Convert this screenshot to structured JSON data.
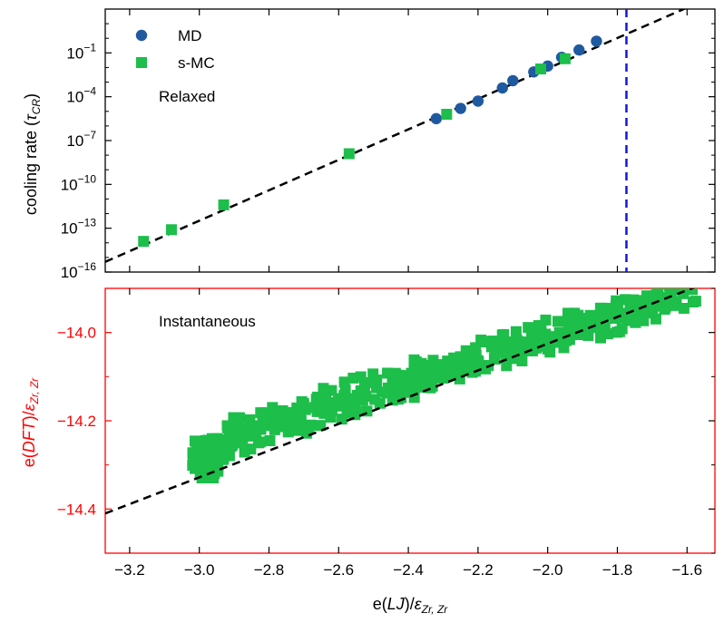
{
  "chart_data": [
    {
      "type": "scatter",
      "panel": "top",
      "title": "",
      "ylabel_main": "cooling rate (",
      "ylabel_sym": "τ",
      "ylabel_sub": "CR",
      "ylabel_close": ")",
      "yscale": "log",
      "ylim_exp": [
        -16,
        2
      ],
      "y_ticks": [
        {
          "base": "10",
          "exp": "−1",
          "pow": -1
        },
        {
          "base": "10",
          "exp": "−4",
          "pow": -4
        },
        {
          "base": "10",
          "exp": "−7",
          "pow": -7
        },
        {
          "base": "10",
          "exp": "−10",
          "pow": -10
        },
        {
          "base": "10",
          "exp": "−13",
          "pow": -13
        },
        {
          "base": "10",
          "exp": "−16",
          "pow": -16
        }
      ],
      "annotation": "Relaxed",
      "legend": [
        {
          "label": "MD",
          "marker": "circle",
          "color": "#1f5aa0"
        },
        {
          "label": "s-MC",
          "marker": "square",
          "color": "#1dbe4a"
        }
      ],
      "series": [
        {
          "name": "MD",
          "color": "#1f5aa0",
          "points": [
            [
              -2.32,
              -5.5
            ],
            [
              -2.25,
              -4.8
            ],
            [
              -2.2,
              -4.3
            ],
            [
              -2.13,
              -3.4
            ],
            [
              -2.1,
              -2.9
            ],
            [
              -2.04,
              -2.3
            ],
            [
              -2.0,
              -1.9
            ],
            [
              -1.96,
              -1.3
            ],
            [
              -1.91,
              -0.8
            ],
            [
              -1.86,
              -0.2
            ]
          ]
        },
        {
          "name": "s-MC",
          "color": "#1dbe4a",
          "points": [
            [
              -3.16,
              -13.9
            ],
            [
              -3.08,
              -13.1
            ],
            [
              -2.93,
              -11.4
            ],
            [
              -2.57,
              -7.9
            ],
            [
              -2.29,
              -5.2
            ],
            [
              -2.02,
              -2.1
            ],
            [
              -1.95,
              -1.4
            ]
          ]
        }
      ],
      "fit_line": {
        "color": "#000000",
        "x": [
          -3.27,
          -1.6
        ],
        "y": [
          -15.3,
          2.1
        ]
      },
      "vline": {
        "x": -1.774,
        "color": "#1616d8"
      }
    },
    {
      "type": "scatter",
      "panel": "bottom",
      "ylabel_main": "e(",
      "ylabel_italic": "DFT",
      "ylabel_close": ")/",
      "ylabel_sym": "ε",
      "ylabel_sub": "Zr, Zr",
      "ylabel_color": "#ff0000",
      "ylim": [
        -14.5,
        -13.9
      ],
      "y_ticks": [
        {
          "label": "−14.0",
          "value": -14.0
        },
        {
          "label": "−14.2",
          "value": -14.2
        },
        {
          "label": "−14.4",
          "value": -14.4
        }
      ],
      "annotation": "Instantaneous",
      "scatter_color": "#1dbe4a",
      "series": [
        {
          "name": "s-MC instantaneous",
          "cluster": {
            "x": [
              -3.02,
              -2.93
            ],
            "y": [
              -14.33,
              -14.24
            ]
          },
          "band": {
            "x": [
              -2.93,
              -1.56
            ],
            "slope": 0.25,
            "intercept": -13.51,
            "spread": 0.03
          }
        }
      ],
      "fit_line": {
        "color": "#000000",
        "x": [
          -3.27,
          -1.52
        ],
        "y": [
          -14.41,
          -13.88
        ]
      }
    }
  ],
  "x_axis": {
    "xlim": [
      -3.27,
      -1.52
    ],
    "xlabel_main": "e(",
    "xlabel_italic": "LJ",
    "xlabel_close": ")/",
    "xlabel_sym": "ε",
    "xlabel_sub": "Zr, Zr",
    "ticks": [
      {
        "label": "−3.2",
        "value": -3.2
      },
      {
        "label": "−3.0",
        "value": -3.0
      },
      {
        "label": "−2.8",
        "value": -2.8
      },
      {
        "label": "−2.6",
        "value": -2.6
      },
      {
        "label": "−2.4",
        "value": -2.4
      },
      {
        "label": "−2.2",
        "value": -2.2
      },
      {
        "label": "−2.0",
        "value": -2.0
      },
      {
        "label": "−1.8",
        "value": -1.8
      },
      {
        "label": "−1.6",
        "value": -1.6
      }
    ]
  }
}
